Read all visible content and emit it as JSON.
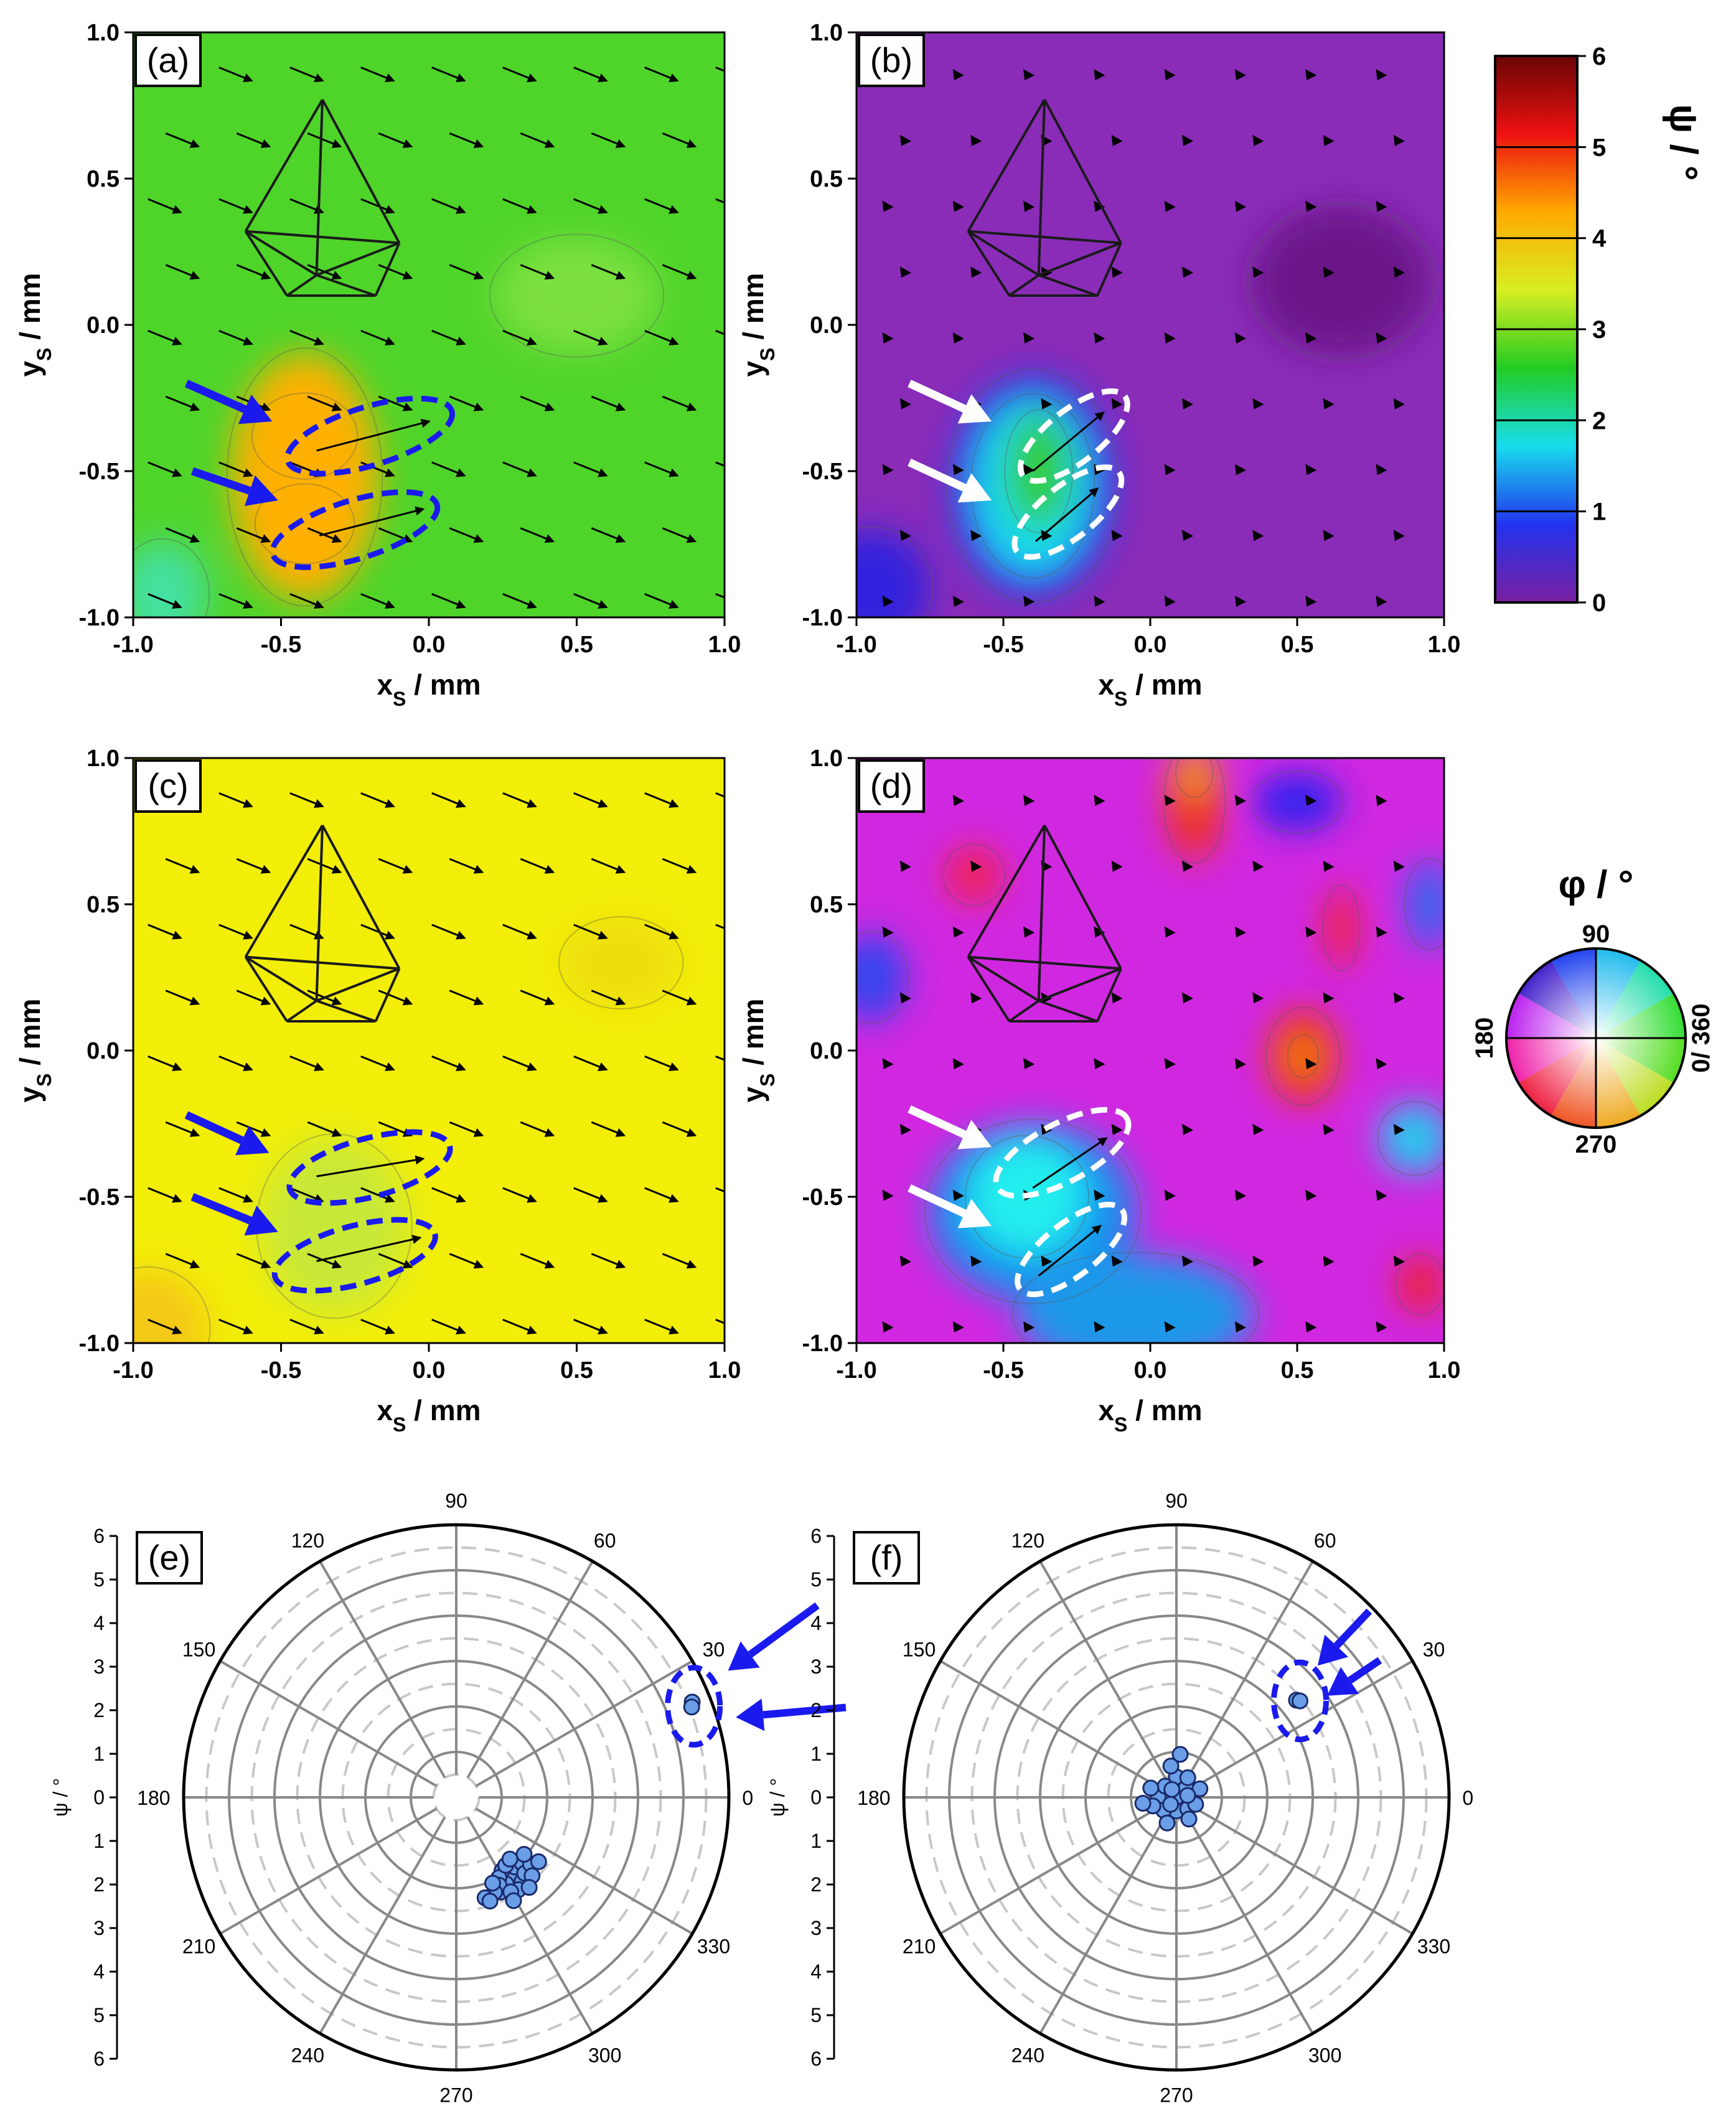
{
  "figure": {
    "colorbar": {
      "label": "ψ / °",
      "ticks": [
        "0",
        "1",
        "2",
        "3",
        "4",
        "5",
        "6"
      ],
      "range": [
        0,
        6
      ],
      "stops": [
        "#7a1fa0",
        "#2233ee",
        "#18ddee",
        "#22cc22",
        "#d8ee22",
        "#ffaa00",
        "#ee1111",
        "#6a0505"
      ]
    },
    "wheel": {
      "label": "φ / °",
      "labels": {
        "top": "90",
        "left": "180",
        "right": "0/ 360",
        "bottom": "270"
      }
    },
    "accent_colors": {
      "blue_marker": "#1a1aee",
      "white_marker": "#ffffff",
      "scatter_fill": "#6a9fe8"
    }
  },
  "chart_data": [
    {
      "panel": "(a)",
      "type": "heatmap",
      "xlabel_main": "x",
      "xlabel_sub": "S",
      "xlabel_unit": " / mm",
      "ylabel_main": "y",
      "ylabel_sub": "S",
      "ylabel_unit": " / mm",
      "xlim": [
        -1.0,
        1.0
      ],
      "ylim": [
        -1.0,
        1.0
      ],
      "xticks": [
        "-1.0",
        "-0.5",
        "0.0",
        "0.5",
        "1.0"
      ],
      "yticks": [
        "-1.0",
        "-0.5",
        "0.0",
        "0.5",
        "1.0"
      ],
      "background": "#4fd42a",
      "hotspots": [
        {
          "x": -0.42,
          "y": -0.38,
          "rx": 0.17,
          "ry": 0.14,
          "color": "#ee1a10"
        },
        {
          "x": -0.42,
          "y": -0.68,
          "rx": 0.16,
          "ry": 0.13,
          "color": "#ee1a10"
        },
        {
          "x": -0.42,
          "y": -0.52,
          "rx": 0.25,
          "ry": 0.42,
          "color": "#ffb000"
        },
        {
          "x": -0.9,
          "y": -0.92,
          "rx": 0.15,
          "ry": 0.18,
          "color": "#44e0a0"
        },
        {
          "x": 0.5,
          "y": 0.1,
          "rx": 0.28,
          "ry": 0.2,
          "color": "#7ae040"
        }
      ],
      "arrow_direction": {
        "dx": 0.11,
        "dy": -0.045
      },
      "ellipse_color": "#1a1aee",
      "ellipses": [
        {
          "cx": -0.2,
          "cy": -0.38,
          "rx": 0.29,
          "ry": 0.1,
          "angle": 17
        },
        {
          "cx": -0.25,
          "cy": -0.7,
          "rx": 0.29,
          "ry": 0.1,
          "angle": 17
        }
      ],
      "inner_arrows": [
        {
          "x1": -0.38,
          "y1": -0.43,
          "x2": 0.0,
          "y2": -0.33
        },
        {
          "x1": -0.37,
          "y1": -0.72,
          "x2": -0.02,
          "y2": -0.63
        }
      ],
      "markers": [
        {
          "x1": -0.82,
          "y1": -0.2,
          "x2": -0.53,
          "y2": -0.33
        },
        {
          "x1": -0.8,
          "y1": -0.5,
          "x2": -0.51,
          "y2": -0.6
        }
      ],
      "marker_color": "#1a1aee",
      "arrow_style": "arrow"
    },
    {
      "panel": "(b)",
      "type": "heatmap",
      "xlabel_main": "x",
      "xlabel_sub": "S",
      "xlabel_unit": " / mm",
      "ylabel_main": "y",
      "ylabel_sub": "S",
      "ylabel_unit": " / mm",
      "xlim": [
        -1.0,
        1.0
      ],
      "ylim": [
        -1.0,
        1.0
      ],
      "xticks": [
        "-1.0",
        "-0.5",
        "0.0",
        "0.5",
        "1.0"
      ],
      "yticks": [
        "-1.0",
        "-0.5",
        "0.0",
        "0.5",
        "1.0"
      ],
      "background": "#8a2cb8",
      "hotspots": [
        {
          "x": -0.4,
          "y": -0.55,
          "rx": 0.28,
          "ry": 0.38,
          "color": "#2233ee"
        },
        {
          "x": -0.4,
          "y": -0.55,
          "rx": 0.2,
          "ry": 0.3,
          "color": "#18ddee"
        },
        {
          "x": -0.38,
          "y": -0.5,
          "rx": 0.11,
          "ry": 0.2,
          "color": "#33cc33"
        },
        {
          "x": -0.95,
          "y": -0.9,
          "rx": 0.2,
          "ry": 0.2,
          "color": "#3322dd"
        },
        {
          "x": 0.65,
          "y": 0.15,
          "rx": 0.3,
          "ry": 0.25,
          "color": "#6a1888"
        }
      ],
      "arrow_direction": {
        "dx": 0.11,
        "dy": -0.045
      },
      "ellipse_color": "#ffffff",
      "ellipses": [
        {
          "cx": -0.26,
          "cy": -0.38,
          "rx": 0.22,
          "ry": 0.09,
          "angle": 38
        },
        {
          "cx": -0.28,
          "cy": -0.64,
          "rx": 0.22,
          "ry": 0.09,
          "angle": 38
        }
      ],
      "inner_arrows": [
        {
          "x1": -0.4,
          "y1": -0.5,
          "x2": -0.16,
          "y2": -0.3
        },
        {
          "x1": -0.39,
          "y1": -0.74,
          "x2": -0.18,
          "y2": -0.56
        }
      ],
      "markers": [
        {
          "x1": -0.82,
          "y1": -0.2,
          "x2": -0.54,
          "y2": -0.33
        },
        {
          "x1": -0.82,
          "y1": -0.47,
          "x2": -0.54,
          "y2": -0.6
        }
      ],
      "marker_color": "#ffffff",
      "arrow_style": "head"
    },
    {
      "panel": "(c)",
      "type": "heatmap",
      "xlabel_main": "x",
      "xlabel_sub": "S",
      "xlabel_unit": " / mm",
      "ylabel_main": "y",
      "ylabel_sub": "S",
      "ylabel_unit": " / mm",
      "xlim": [
        -1.0,
        1.0
      ],
      "ylim": [
        -1.0,
        1.0
      ],
      "xticks": [
        "-1.0",
        "-0.5",
        "0.0",
        "0.5",
        "1.0"
      ],
      "yticks": [
        "-1.0",
        "-0.5",
        "0.0",
        "0.5",
        "1.0"
      ],
      "background": "#f2ee08",
      "hotspots": [
        {
          "x": -0.32,
          "y": -0.6,
          "rx": 0.25,
          "ry": 0.3,
          "color": "#c8e838"
        },
        {
          "x": -0.95,
          "y": -0.95,
          "rx": 0.2,
          "ry": 0.2,
          "color": "#f4c818"
        },
        {
          "x": 0.65,
          "y": 0.3,
          "rx": 0.2,
          "ry": 0.15,
          "color": "#eedd10"
        }
      ],
      "arrow_direction": {
        "dx": 0.11,
        "dy": -0.045
      },
      "ellipse_color": "#1a1aee",
      "ellipses": [
        {
          "cx": -0.2,
          "cy": -0.4,
          "rx": 0.28,
          "ry": 0.1,
          "angle": 15
        },
        {
          "cx": -0.25,
          "cy": -0.7,
          "rx": 0.28,
          "ry": 0.1,
          "angle": 15
        }
      ],
      "inner_arrows": [
        {
          "x1": -0.38,
          "y1": -0.43,
          "x2": -0.02,
          "y2": -0.37
        },
        {
          "x1": -0.38,
          "y1": -0.72,
          "x2": -0.03,
          "y2": -0.64
        }
      ],
      "markers": [
        {
          "x1": -0.82,
          "y1": -0.22,
          "x2": -0.54,
          "y2": -0.35
        },
        {
          "x1": -0.8,
          "y1": -0.5,
          "x2": -0.51,
          "y2": -0.62
        }
      ],
      "marker_color": "#1a1aee",
      "arrow_style": "arrow"
    },
    {
      "panel": "(d)",
      "type": "heatmap",
      "xlabel_main": "x",
      "xlabel_sub": "S",
      "xlabel_unit": " / mm",
      "ylabel_main": "y",
      "ylabel_sub": "S",
      "ylabel_unit": " / mm",
      "xlim": [
        -1.0,
        1.0
      ],
      "ylim": [
        -1.0,
        1.0
      ],
      "xticks": [
        "-1.0",
        "-0.5",
        "0.0",
        "0.5",
        "1.0"
      ],
      "yticks": [
        "-1.0",
        "-0.5",
        "0.0",
        "0.5",
        "1.0"
      ],
      "background": "#d028e0",
      "hotspots": [
        {
          "x": -0.4,
          "y": -0.55,
          "rx": 0.35,
          "ry": 0.3,
          "color": "#1890ee"
        },
        {
          "x": -0.42,
          "y": -0.5,
          "rx": 0.2,
          "ry": 0.2,
          "color": "#22eeee"
        },
        {
          "x": -0.05,
          "y": -0.9,
          "rx": 0.4,
          "ry": 0.2,
          "color": "#1a98e8"
        },
        {
          "x": 0.15,
          "y": 0.85,
          "rx": 0.1,
          "ry": 0.2,
          "color": "#ee3322"
        },
        {
          "x": 0.15,
          "y": 0.95,
          "rx": 0.06,
          "ry": 0.08,
          "color": "#f0a020"
        },
        {
          "x": -0.6,
          "y": 0.6,
          "rx": 0.1,
          "ry": 0.1,
          "color": "#ee2255"
        },
        {
          "x": 0.52,
          "y": -0.02,
          "rx": 0.12,
          "ry": 0.16,
          "color": "#ee3311"
        },
        {
          "x": 0.52,
          "y": -0.02,
          "rx": 0.05,
          "ry": 0.07,
          "color": "#f09010"
        },
        {
          "x": 0.65,
          "y": 0.42,
          "rx": 0.06,
          "ry": 0.14,
          "color": "#ee2244"
        },
        {
          "x": 0.5,
          "y": 0.85,
          "rx": 0.15,
          "ry": 0.1,
          "color": "#3322ee"
        },
        {
          "x": 0.9,
          "y": -0.3,
          "rx": 0.12,
          "ry": 0.12,
          "color": "#22ccee"
        },
        {
          "x": 0.92,
          "y": -0.8,
          "rx": 0.08,
          "ry": 0.1,
          "color": "#ee2233"
        },
        {
          "x": -0.95,
          "y": 0.25,
          "rx": 0.12,
          "ry": 0.15,
          "color": "#3344ee"
        },
        {
          "x": 0.95,
          "y": 0.5,
          "rx": 0.08,
          "ry": 0.15,
          "color": "#3366ee"
        }
      ],
      "arrow_direction": {
        "dx": 0.11,
        "dy": -0.045
      },
      "ellipse_color": "#ffffff",
      "ellipses": [
        {
          "cx": -0.3,
          "cy": -0.35,
          "rx": 0.25,
          "ry": 0.1,
          "angle": 28
        },
        {
          "cx": -0.27,
          "cy": -0.68,
          "rx": 0.22,
          "ry": 0.09,
          "angle": 38
        }
      ],
      "inner_arrows": [
        {
          "x1": -0.4,
          "y1": -0.47,
          "x2": -0.15,
          "y2": -0.3
        },
        {
          "x1": -0.38,
          "y1": -0.77,
          "x2": -0.17,
          "y2": -0.6
        }
      ],
      "markers": [
        {
          "x1": -0.82,
          "y1": -0.2,
          "x2": -0.54,
          "y2": -0.33
        },
        {
          "x1": -0.82,
          "y1": -0.47,
          "x2": -0.54,
          "y2": -0.6
        }
      ],
      "marker_color": "#ffffff",
      "arrow_style": "head"
    },
    {
      "panel": "(e)",
      "type": "scatter",
      "ylabel": "ψ / °",
      "radial_lim": [
        0,
        6
      ],
      "radial_ticks_up": [
        "6",
        "5",
        "4",
        "3",
        "2",
        "1",
        "0"
      ],
      "radial_ticks_down": [
        "1",
        "2",
        "3",
        "4",
        "5",
        "6"
      ],
      "angle_labels": [
        "0",
        "30",
        "60",
        "90",
        "120",
        "150",
        "180",
        "210",
        "240",
        "270",
        "300",
        "330"
      ],
      "points": [
        {
          "phi": 22,
          "psi": 5.6
        },
        {
          "phi": 21,
          "psi": 5.55
        },
        {
          "phi": 305,
          "psi": 2.1
        },
        {
          "phi": 300,
          "psi": 2.2
        },
        {
          "phi": 310,
          "psi": 2.0
        },
        {
          "phi": 295,
          "psi": 2.3
        },
        {
          "phi": 315,
          "psi": 2.05
        },
        {
          "phi": 302,
          "psi": 1.9
        },
        {
          "phi": 308,
          "psi": 2.35
        },
        {
          "phi": 298,
          "psi": 2.0
        },
        {
          "phi": 312,
          "psi": 2.25
        },
        {
          "phi": 304,
          "psi": 2.45
        },
        {
          "phi": 296,
          "psi": 2.15
        },
        {
          "phi": 318,
          "psi": 2.2
        },
        {
          "phi": 300,
          "psi": 2.4
        },
        {
          "phi": 306,
          "psi": 1.85
        },
        {
          "phi": 292,
          "psi": 2.25
        },
        {
          "phi": 314,
          "psi": 2.4
        },
        {
          "phi": 320,
          "psi": 1.95
        },
        {
          "phi": 293,
          "psi": 2.05
        },
        {
          "phi": 309,
          "psi": 2.55
        },
        {
          "phi": 286,
          "psi": 2.3
        },
        {
          "phi": 288,
          "psi": 2.4
        },
        {
          "phi": 322,
          "psi": 2.3
        },
        {
          "phi": 299,
          "psi": 2.6
        },
        {
          "phi": 311,
          "psi": 1.8
        }
      ],
      "highlight": {
        "phi": 21,
        "psi": 5.6
      },
      "markers": [
        {
          "phi": 28,
          "psi": 9.0,
          "phi2": 25,
          "psi2": 6.6
        },
        {
          "phi": 13,
          "psi": 8.8,
          "phi2": 16,
          "psi2": 6.4
        }
      ]
    },
    {
      "panel": "(f)",
      "type": "scatter",
      "ylabel": "ψ / °",
      "radial_lim": [
        0,
        6
      ],
      "radial_ticks_up": [
        "6",
        "5",
        "4",
        "3",
        "2",
        "1",
        "0"
      ],
      "radial_ticks_down": [
        "1",
        "2",
        "3",
        "4",
        "5",
        "6"
      ],
      "angle_labels": [
        "0",
        "30",
        "60",
        "90",
        "120",
        "150",
        "180",
        "210",
        "240",
        "270",
        "300",
        "330"
      ],
      "points": [
        {
          "phi": 39,
          "psi": 3.4
        },
        {
          "phi": 38,
          "psi": 3.45
        },
        {
          "phi": 0,
          "psi": 0.0
        },
        {
          "phi": 90,
          "psi": 0.45
        },
        {
          "phi": 180,
          "psi": 0.4
        },
        {
          "phi": 270,
          "psi": 0.3
        },
        {
          "phi": 45,
          "psi": 0.3
        },
        {
          "phi": 135,
          "psi": 0.35
        },
        {
          "phi": 225,
          "psi": 0.4
        },
        {
          "phi": 315,
          "psi": 0.35
        },
        {
          "phi": 20,
          "psi": 0.55
        },
        {
          "phi": 160,
          "psi": 0.6
        },
        {
          "phi": 200,
          "psi": 0.55
        },
        {
          "phi": 340,
          "psi": 0.45
        },
        {
          "phi": 100,
          "psi": 0.7
        },
        {
          "phi": 250,
          "psi": 0.6
        },
        {
          "phi": 300,
          "psi": 0.55
        },
        {
          "phi": 60,
          "psi": 0.5
        },
        {
          "phi": 120,
          "psi": 0.2
        },
        {
          "phi": 190,
          "psi": 0.75
        },
        {
          "phi": 85,
          "psi": 0.95
        },
        {
          "phi": 10,
          "psi": 0.25
        },
        {
          "phi": 230,
          "psi": 0.2
        }
      ],
      "highlight": {
        "phi": 38,
        "psi": 3.45
      },
      "markers": [
        {
          "phi": 44,
          "psi": 5.9,
          "phi2": 43,
          "psi2": 4.25
        },
        {
          "phi": 34,
          "psi": 5.4,
          "phi2": 34,
          "psi2": 4.0
        }
      ]
    }
  ]
}
